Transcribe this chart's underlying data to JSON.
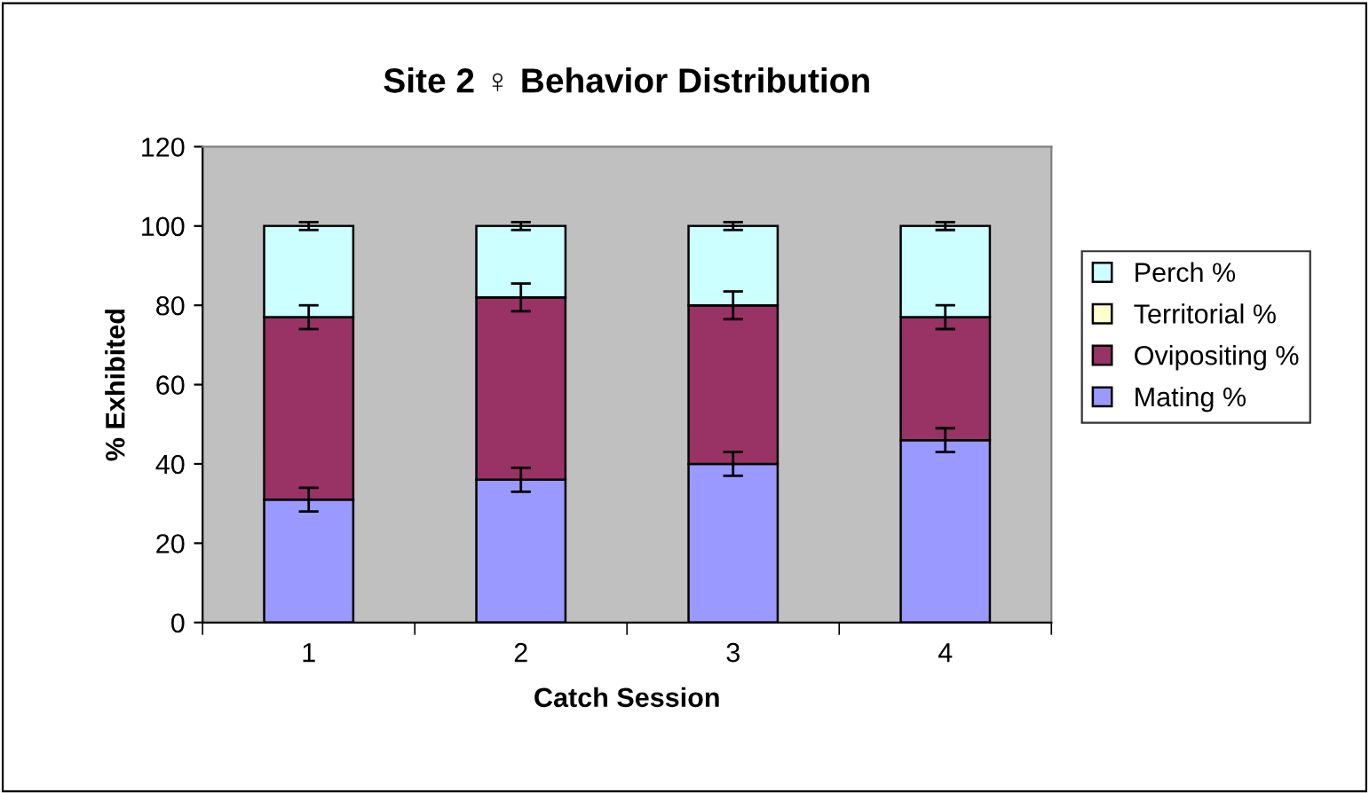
{
  "chart_data": {
    "type": "bar",
    "title": "Site 2 ♀ Behavior Distribution",
    "xlabel": "Catch Session",
    "ylabel": "% Exhibited",
    "categories": [
      "1",
      "2",
      "3",
      "4"
    ],
    "stacked": true,
    "series": [
      {
        "name": "Mating %",
        "color": "#9999ff",
        "values": [
          31,
          36,
          40,
          46
        ],
        "errors": [
          3,
          3,
          3,
          3
        ]
      },
      {
        "name": "Ovipositing %",
        "color": "#993366",
        "values": [
          46,
          46,
          40,
          31
        ],
        "errors": [
          3,
          3.5,
          3.5,
          3
        ]
      },
      {
        "name": "Territorial %",
        "color": "#ffffcc",
        "values": [
          0,
          0,
          0,
          0
        ]
      },
      {
        "name": "Perch %",
        "color": "#ccffff",
        "values": [
          23,
          18,
          20,
          23
        ],
        "errors": [
          1,
          1,
          1,
          1
        ]
      }
    ],
    "ylim": [
      0,
      120
    ],
    "yticks": [
      0,
      20,
      40,
      60,
      80,
      100,
      120
    ],
    "grid": false,
    "legend": "right"
  }
}
